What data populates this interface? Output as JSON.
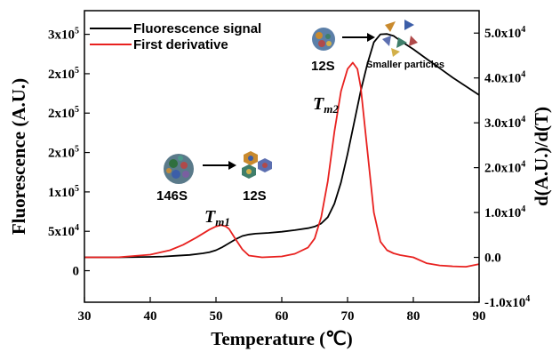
{
  "chart_data": {
    "type": "line",
    "xlabel": "Temperature (℃)",
    "ylabel_left": "Fluorescence (A.U.)",
    "ylabel_right": "d(A.U.)/d(T)",
    "xlim": [
      30,
      90
    ],
    "ylim_left": [
      -40000,
      330000
    ],
    "ylim_right": [
      -10000,
      55000
    ],
    "x_ticks": [
      "30",
      "40",
      "50",
      "60",
      "70",
      "80",
      "90"
    ],
    "y_left_ticks": [
      {
        "value": 0,
        "mantissa": "0",
        "exp": ""
      },
      {
        "value": 50000,
        "mantissa": "5x10",
        "exp": "4"
      },
      {
        "value": 100000,
        "mantissa": "1x10",
        "exp": "5"
      },
      {
        "value": 150000,
        "mantissa": "2x10",
        "exp": "5"
      },
      {
        "value": 200000,
        "mantissa": "2x10",
        "exp": "5"
      },
      {
        "value": 250000,
        "mantissa": "2x10",
        "exp": "5"
      },
      {
        "value": 300000,
        "mantissa": "3x10",
        "exp": "5"
      },
      {
        "value": 350000,
        "mantissa": "3x10",
        "exp": "5"
      }
    ],
    "y_right_ticks": [
      {
        "value": -10000,
        "mantissa": "-1.0x10",
        "exp": "4"
      },
      {
        "value": 0,
        "mantissa": "0.0",
        "exp": ""
      },
      {
        "value": 10000,
        "mantissa": "1.0x10",
        "exp": "4"
      },
      {
        "value": 20000,
        "mantissa": "2.0x10",
        "exp": "4"
      },
      {
        "value": 30000,
        "mantissa": "3.0x10",
        "exp": "4"
      },
      {
        "value": 40000,
        "mantissa": "4.0x10",
        "exp": "4"
      },
      {
        "value": 50000,
        "mantissa": "5.0x10",
        "exp": "4"
      }
    ],
    "series": [
      {
        "name": "Fluorescence signal",
        "color": "#000000",
        "axis": "left",
        "x": [
          30,
          35,
          40,
          42,
          44,
          46,
          48,
          49,
          50,
          51,
          52,
          53,
          54,
          55,
          56,
          58,
          60,
          62,
          64,
          65,
          66,
          67,
          68,
          69,
          70,
          71,
          72,
          73,
          74,
          75,
          76,
          77,
          78,
          80,
          82,
          84,
          86,
          88,
          90
        ],
        "y": [
          17000,
          17000,
          17500,
          18000,
          19000,
          20000,
          22000,
          23500,
          26000,
          30000,
          35000,
          40000,
          44000,
          46000,
          47000,
          48000,
          49500,
          51500,
          54000,
          56000,
          60000,
          68000,
          85000,
          112000,
          148000,
          188000,
          228000,
          262000,
          290000,
          300000,
          300500,
          298000,
          292000,
          281000,
          269000,
          257000,
          245000,
          234000,
          223000
        ]
      },
      {
        "name": "First derivative",
        "color": "#e8211f",
        "axis": "right",
        "x": [
          30,
          35,
          40,
          43,
          45,
          47,
          48,
          49,
          50,
          50.8,
          51.5,
          52,
          53,
          54,
          55,
          57,
          60,
          62,
          64,
          65,
          66,
          67,
          68,
          69,
          70,
          70.8,
          71.5,
          72,
          73,
          74,
          75,
          76,
          77,
          78,
          80,
          82,
          84,
          86,
          88,
          90
        ],
        "y": [
          0,
          0,
          600,
          1600,
          2800,
          4400,
          5300,
          6200,
          6900,
          7200,
          6900,
          6300,
          4000,
          1800,
          400,
          0,
          200,
          800,
          2200,
          4200,
          9000,
          17000,
          28000,
          37000,
          42000,
          43400,
          42000,
          38000,
          24000,
          10000,
          3500,
          1600,
          900,
          500,
          0,
          -1300,
          -1800,
          -2000,
          -2100,
          -1500
        ]
      }
    ],
    "legend": "top-left",
    "annotations": {
      "tm1_main": "T",
      "tm1_sub": "m1",
      "tm2_main": "T",
      "tm2_sub": "m2",
      "label_146S": "146S",
      "label_12S_low": "12S",
      "label_12S_high": "12S",
      "label_small": "Smaller particles"
    }
  }
}
